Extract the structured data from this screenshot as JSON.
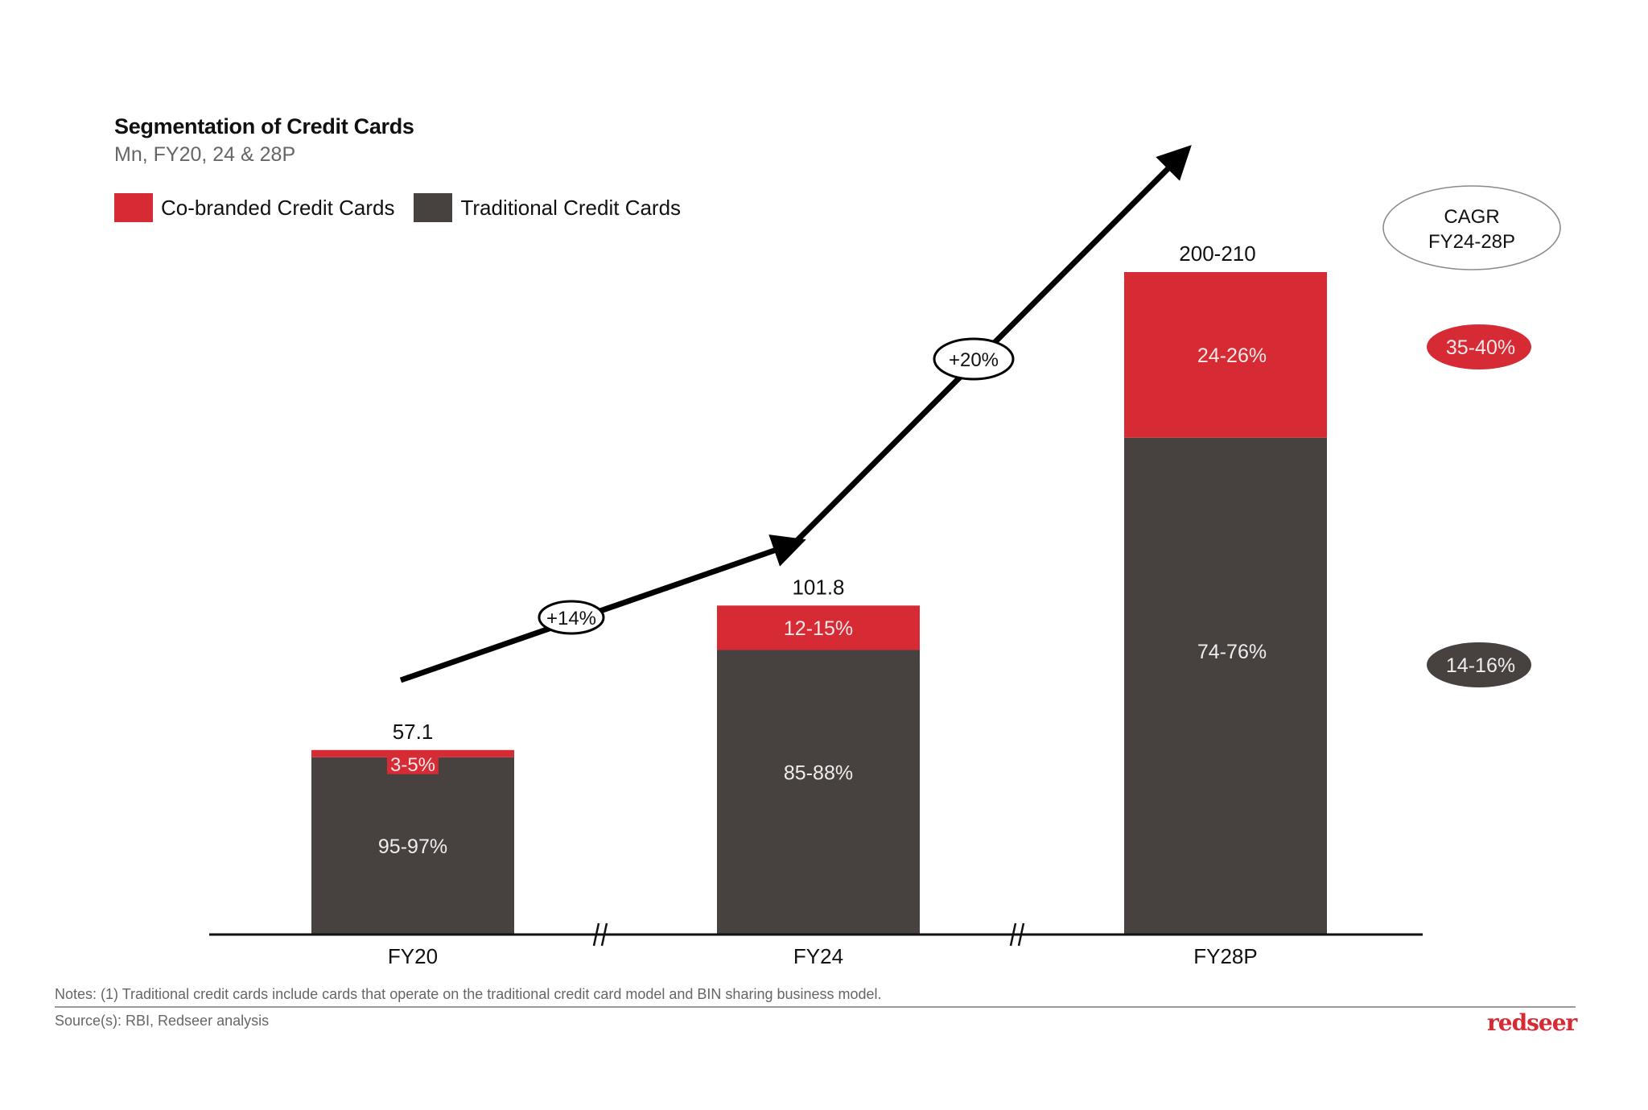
{
  "colors": {
    "cobranded": "#d62b34",
    "traditional": "#474140",
    "arrow": "#000000",
    "background": "#ffffff"
  },
  "header": {
    "title": "Segmentation of Credit Cards",
    "subtitle": "Mn, FY20, 24 & 28P"
  },
  "legend": {
    "items": [
      {
        "label": "Co-branded Credit Cards",
        "color": "#d62b34"
      },
      {
        "label": "Traditional Credit Cards",
        "color": "#474140"
      }
    ]
  },
  "cagr_panel": {
    "header_line1": "CAGR",
    "header_line2": "FY24-28P",
    "cobranded_value": "35-40%",
    "traditional_value": "14-16%"
  },
  "growth_labels": {
    "fy20_fy24": "+14%",
    "fy24_fy28": "+20%"
  },
  "chart_data": {
    "type": "bar",
    "stacked": true,
    "title": "Segmentation of Credit Cards",
    "subtitle": "Mn, FY20, 24 & 28P",
    "xlabel": "",
    "ylabel": "",
    "categories": [
      "FY20",
      "FY24",
      "FY28P"
    ],
    "totals": [
      57.1,
      101.8,
      205
    ],
    "total_labels": [
      "57.1",
      "101.8",
      "200-210"
    ],
    "series": [
      {
        "name": "Traditional Credit Cards",
        "color": "#474140",
        "share_labels": [
          "95-97%",
          "85-88%",
          "74-76%"
        ],
        "share_midpoints": [
          96,
          86.5,
          75
        ]
      },
      {
        "name": "Co-branded Credit Cards",
        "color": "#d62b34",
        "share_labels": [
          "3-5%",
          "12-15%",
          "24-26%"
        ],
        "share_midpoints": [
          4,
          13.5,
          25
        ]
      }
    ],
    "axis_breaks": [
      "FY20-FY24",
      "FY24-FY28P"
    ],
    "grid": false,
    "legend_position": "top-left",
    "annotations": [
      {
        "type": "growth-arrow",
        "from": "FY20",
        "to": "FY24",
        "label": "+14%"
      },
      {
        "type": "growth-arrow",
        "from": "FY24",
        "to": "FY28P",
        "label": "+20%"
      },
      {
        "type": "cagr",
        "period": "FY24-28P",
        "series": "Co-branded Credit Cards",
        "label": "35-40%"
      },
      {
        "type": "cagr",
        "period": "FY24-28P",
        "series": "Traditional Credit Cards",
        "label": "14-16%"
      }
    ]
  },
  "footer": {
    "notes": "Notes: (1) Traditional credit cards include cards that operate on the traditional credit card model and BIN sharing business model.",
    "source": "Source(s): RBI, Redseer analysis",
    "logo": "redseer"
  }
}
